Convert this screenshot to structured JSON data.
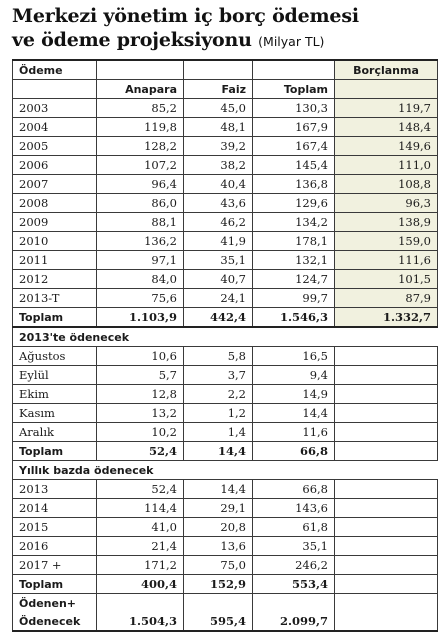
{
  "title": {
    "line1": "Merkezi yönetim iç borç ödemesi",
    "line2": "ve ödeme projeksiyonu",
    "unit": "(Milyar TL)"
  },
  "headers": {
    "odeme": "Ödeme",
    "borclanma": "Borçlanma",
    "anapara": "Anapara",
    "faiz": "Faiz",
    "toplam": "Toplam"
  },
  "annual_rows": [
    {
      "year": "2003",
      "anapara": "85,2",
      "faiz": "45,0",
      "toplam": "130,3",
      "borclanma": "119,7"
    },
    {
      "year": "2004",
      "anapara": "119,8",
      "faiz": "48,1",
      "toplam": "167,9",
      "borclanma": "148,4"
    },
    {
      "year": "2005",
      "anapara": "128,2",
      "faiz": "39,2",
      "toplam": "167,4",
      "borclanma": "149,6"
    },
    {
      "year": "2006",
      "anapara": "107,2",
      "faiz": "38,2",
      "toplam": "145,4",
      "borclanma": "111,0"
    },
    {
      "year": "2007",
      "anapara": "96,4",
      "faiz": "40,4",
      "toplam": "136,8",
      "borclanma": "108,8"
    },
    {
      "year": "2008",
      "anapara": "86,0",
      "faiz": "43,6",
      "toplam": "129,6",
      "borclanma": "96,3"
    },
    {
      "year": "2009",
      "anapara": "88,1",
      "faiz": "46,2",
      "toplam": "134,2",
      "borclanma": "138,9"
    },
    {
      "year": "2010",
      "anapara": "136,2",
      "faiz": "41,9",
      "toplam": "178,1",
      "borclanma": "159,0"
    },
    {
      "year": "2011",
      "anapara": "97,1",
      "faiz": "35,1",
      "toplam": "132,1",
      "borclanma": "111,6"
    },
    {
      "year": "2012",
      "anapara": "84,0",
      "faiz": "40,7",
      "toplam": "124,7",
      "borclanma": "101,5"
    },
    {
      "year": "2013-T",
      "anapara": "75,6",
      "faiz": "24,1",
      "toplam": "99,7",
      "borclanma": "87,9"
    }
  ],
  "annual_total": {
    "label": "Toplam",
    "anapara": "1.103,9",
    "faiz": "442,4",
    "toplam": "1.546,3",
    "borclanma": "1.332,7"
  },
  "section_2013": {
    "title": "2013'te ödenecek",
    "rows": [
      {
        "month": "Ağustos",
        "anapara": "10,6",
        "faiz": "5,8",
        "toplam": "16,5"
      },
      {
        "month": "Eylül",
        "anapara": "5,7",
        "faiz": "3,7",
        "toplam": "9,4"
      },
      {
        "month": "Ekim",
        "anapara": "12,8",
        "faiz": "2,2",
        "toplam": "14,9"
      },
      {
        "month": "Kasım",
        "anapara": "13,2",
        "faiz": "1,2",
        "toplam": "14,4"
      },
      {
        "month": "Aralık",
        "anapara": "10,2",
        "faiz": "1,4",
        "toplam": "11,6"
      }
    ],
    "total": {
      "label": "Toplam",
      "anapara": "52,4",
      "faiz": "14,4",
      "toplam": "66,8"
    }
  },
  "section_yearly": {
    "title": "Yıllık bazda ödenecek",
    "rows": [
      {
        "year": "2013",
        "anapara": "52,4",
        "faiz": "14,4",
        "toplam": "66,8"
      },
      {
        "year": "2014",
        "anapara": "114,4",
        "faiz": "29,1",
        "toplam": "143,6"
      },
      {
        "year": "2015",
        "anapara": "41,0",
        "faiz": "20,8",
        "toplam": "61,8"
      },
      {
        "year": "2016",
        "anapara": "21,4",
        "faiz": "13,6",
        "toplam": "35,1"
      },
      {
        "year": "2017 +",
        "anapara": "171,2",
        "faiz": "75,0",
        "toplam": "246,2"
      }
    ],
    "total": {
      "label": "Toplam",
      "anapara": "400,4",
      "faiz": "152,9",
      "toplam": "553,4"
    }
  },
  "grand": {
    "label1": "Ödenen+",
    "label2": "Ödenecek",
    "anapara": "1.504,3",
    "faiz": "595,4",
    "toplam": "2.099,7"
  }
}
